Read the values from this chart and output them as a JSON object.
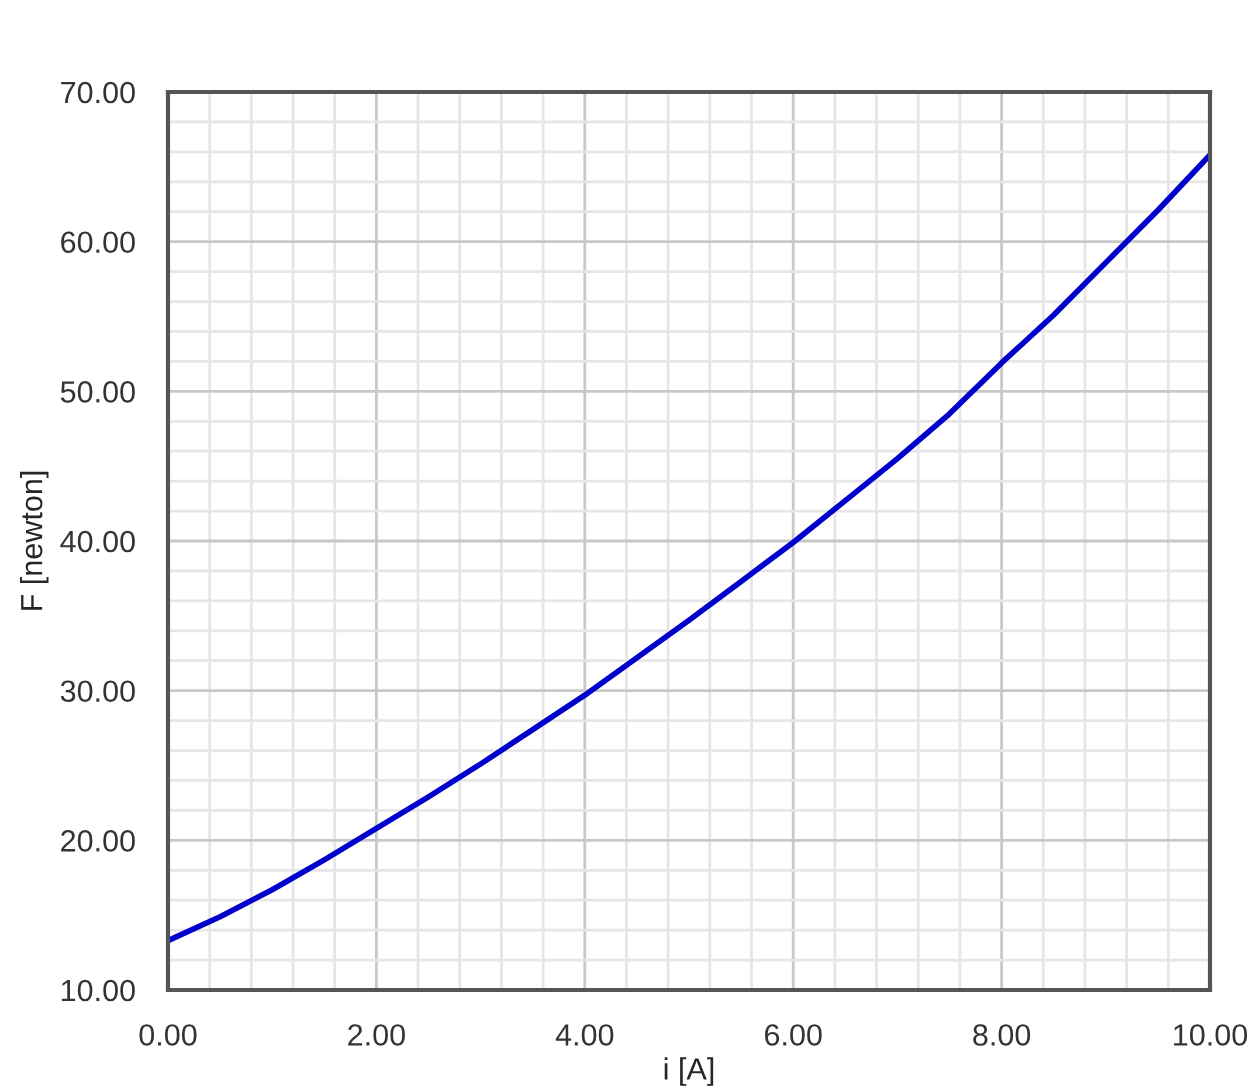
{
  "chart_data": {
    "type": "line",
    "xlabel": "i [A]",
    "ylabel": "F [newton]",
    "x": [
      0,
      0.5,
      1,
      1.5,
      2,
      2.5,
      3,
      3.5,
      4,
      4.5,
      5,
      5.5,
      6,
      6.5,
      7,
      7.5,
      8,
      8.5,
      9,
      9.5,
      10
    ],
    "series": [
      {
        "color": "#0000cc",
        "values": [
          13.3,
          14.9,
          16.7,
          18.7,
          20.8,
          22.9,
          25.1,
          27.4,
          29.7,
          32.2,
          34.7,
          37.3,
          39.9,
          42.7,
          45.5,
          48.5,
          51.9,
          55.1,
          58.6,
          62.1,
          65.8
        ]
      }
    ],
    "xlim": [
      0,
      10
    ],
    "ylim": [
      10,
      70
    ],
    "xticks": [
      {
        "value": 0,
        "label": "0.00"
      },
      {
        "value": 2,
        "label": "2.00"
      },
      {
        "value": 4,
        "label": "4.00"
      },
      {
        "value": 6,
        "label": "6.00"
      },
      {
        "value": 8,
        "label": "8.00"
      },
      {
        "value": 10,
        "label": "10.00"
      }
    ],
    "yticks": [
      {
        "value": 10,
        "label": "10.00"
      },
      {
        "value": 20,
        "label": "20.00"
      },
      {
        "value": 30,
        "label": "30.00"
      },
      {
        "value": 40,
        "label": "40.00"
      },
      {
        "value": 50,
        "label": "50.00"
      },
      {
        "value": 60,
        "label": "60.00"
      },
      {
        "value": 70,
        "label": "70.00"
      }
    ],
    "grid": true,
    "line_style": "solid",
    "marker": "none"
  }
}
